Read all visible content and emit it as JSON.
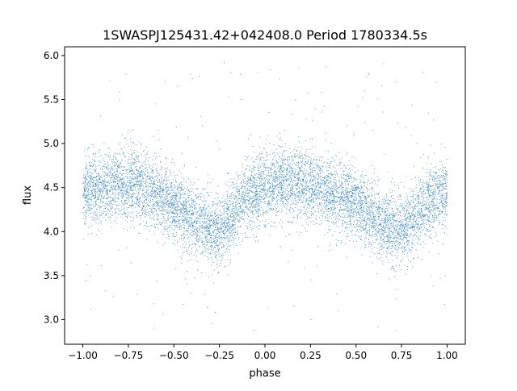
{
  "chart_data": {
    "type": "scatter",
    "title": "1SWASPJ125431.42+042408.0 Period 1780334.5s",
    "xlabel": "phase",
    "ylabel": "flux",
    "xlim": [
      -1.1,
      1.1
    ],
    "ylim": [
      2.72,
      6.1
    ],
    "x_ticks": [
      -1.0,
      -0.75,
      -0.5,
      -0.25,
      0.0,
      0.25,
      0.5,
      0.75,
      1.0
    ],
    "x_tick_labels": [
      "−1.00",
      "−0.75",
      "−0.50",
      "−0.25",
      "0.00",
      "0.25",
      "0.50",
      "0.75",
      "1.00"
    ],
    "y_ticks": [
      3.0,
      3.5,
      4.0,
      4.5,
      5.0,
      5.5,
      6.0
    ],
    "y_tick_labels": [
      "3.0",
      "3.5",
      "4.0",
      "4.5",
      "5.0",
      "5.5",
      "6.0"
    ],
    "grid": false,
    "legend": "none",
    "marker_color": "#1f77b4",
    "phase_range": [
      -1.0,
      1.0
    ],
    "phased_profile": {
      "phase": [
        -1.0,
        -0.9,
        -0.8,
        -0.7,
        -0.6,
        -0.5,
        -0.4,
        -0.3,
        -0.25,
        -0.2,
        -0.1,
        0.0,
        0.1,
        0.2,
        0.3,
        0.4,
        0.5,
        0.6,
        0.7,
        0.75,
        0.8,
        0.9,
        1.0
      ],
      "mean_flux": [
        4.45,
        4.5,
        4.55,
        4.52,
        4.45,
        4.3,
        4.15,
        4.05,
        4.0,
        4.15,
        4.4,
        4.5,
        4.55,
        4.55,
        4.48,
        4.4,
        4.3,
        4.15,
        4.05,
        4.0,
        4.15,
        4.35,
        4.45
      ]
    },
    "scatter_sd": 0.2,
    "outlier_range": [
      2.85,
      5.95
    ]
  }
}
